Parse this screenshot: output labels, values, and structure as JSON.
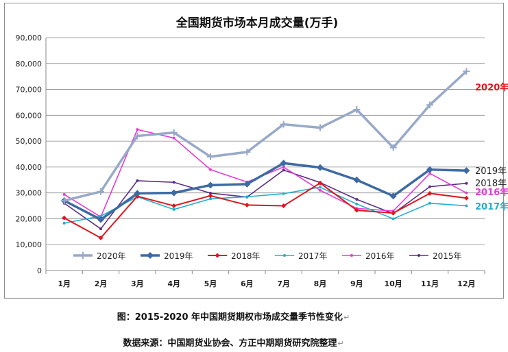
{
  "chart_data": {
    "type": "line",
    "title": "全国期货市场本月成交量(万手)",
    "categories": [
      "1月",
      "2月",
      "3月",
      "4月",
      "5月",
      "6月",
      "7月",
      "8月",
      "9月",
      "10月",
      "11月",
      "12月"
    ],
    "ylim": [
      0,
      90000
    ],
    "yticks": [
      "0",
      "10,000",
      "20,000",
      "30,000",
      "40,000",
      "50,000",
      "60,000",
      "70,000",
      "80,000",
      "90,000"
    ],
    "ytick_values": [
      0,
      10000,
      20000,
      30000,
      40000,
      50000,
      60000,
      70000,
      80000,
      90000
    ],
    "grid": true,
    "legend_position": "bottom-inside",
    "series": [
      {
        "name": "2020年",
        "color": "#97a9c8",
        "marker": "plus",
        "width": 3.5,
        "values": [
          27000,
          30500,
          52000,
          53300,
          44000,
          45800,
          56500,
          55200,
          62200,
          47500,
          64000,
          77000
        ]
      },
      {
        "name": "2019年",
        "color": "#3d6aa2",
        "marker": "diamond",
        "width": 3.5,
        "values": [
          27000,
          19700,
          29800,
          30000,
          33000,
          33400,
          41500,
          39800,
          35000,
          28800,
          39000,
          38600
        ]
      },
      {
        "name": "2018年",
        "color": "#e0161b",
        "marker": "diamond-small",
        "width": 2,
        "values": [
          20300,
          12600,
          28700,
          25000,
          28900,
          25300,
          25000,
          33800,
          23300,
          22200,
          29800,
          28000
        ]
      },
      {
        "name": "2017年",
        "color": "#22afd0",
        "marker": "dot",
        "width": 1.6,
        "values": [
          18300,
          21000,
          28500,
          23600,
          27700,
          28500,
          29700,
          32200,
          25700,
          20000,
          26000,
          25000
        ]
      },
      {
        "name": "2016年",
        "color": "#e93ad6",
        "marker": "dot",
        "width": 1.6,
        "values": [
          29400,
          20700,
          54500,
          51200,
          39000,
          34200,
          40000,
          31000,
          24000,
          23000,
          37500,
          30000
        ]
      },
      {
        "name": "2015年",
        "color": "#5c2d86",
        "marker": "dot",
        "width": 1.6,
        "values": [
          26000,
          16100,
          34700,
          34100,
          29900,
          28400,
          38800,
          34000,
          27500,
          22000,
          32400,
          33700
        ]
      }
    ],
    "end_labels": [
      {
        "text": "2020年",
        "color": "#e0161b",
        "series": 0
      },
      {
        "text": "2019年",
        "color": "#222222",
        "series": 1
      },
      {
        "text": "2018年",
        "color": "#222222",
        "series": 2
      },
      {
        "text": "2016年",
        "color": "#e93ad6",
        "series": 4
      },
      {
        "text": "2017年",
        "color": "#22afd0",
        "series": 3
      }
    ]
  },
  "captions": {
    "figure": "图：2015-2020 年中国期货期权市场成交量季节性变化",
    "source": "数据来源：中国期货业协会、方正中期期货研究院整理",
    "para_mark": "↵"
  }
}
